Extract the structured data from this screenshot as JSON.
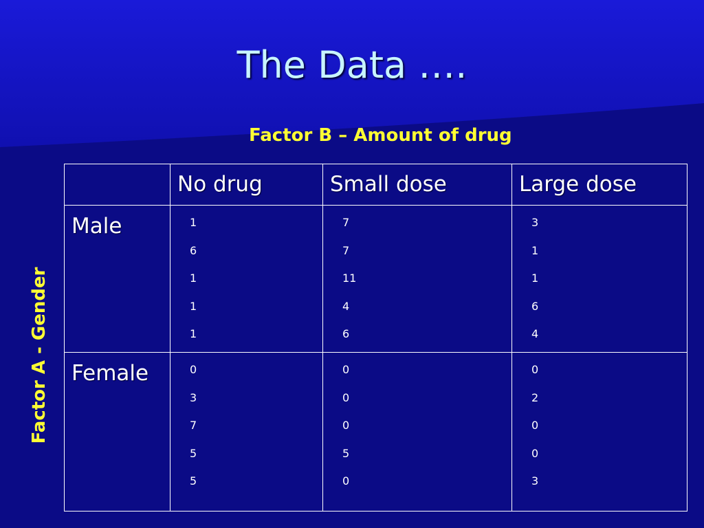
{
  "slide": {
    "title": "The Data ….",
    "factor_b_label": "Factor B – Amount of drug",
    "factor_a_label": "Factor A - Gender"
  },
  "table": {
    "columns": [
      "",
      "No drug",
      "Small dose",
      "Large dose"
    ],
    "rows": [
      {
        "label": "Male",
        "cells": [
          [
            "1",
            "6",
            "1",
            "1",
            "1"
          ],
          [
            "7",
            "7",
            "11",
            "4",
            "6"
          ],
          [
            "3",
            "1",
            "1",
            "6",
            "4"
          ]
        ]
      },
      {
        "label": "Female",
        "cells": [
          [
            "0",
            "3",
            "7",
            "5",
            "5"
          ],
          [
            "0",
            "0",
            "0",
            "5",
            "0"
          ],
          [
            "0",
            "2",
            "0",
            "0",
            "3"
          ]
        ]
      }
    ]
  },
  "colors": {
    "background": "#0b0b86",
    "title": "#c8f4ff",
    "factor_labels": "#ffff33",
    "table_text": "#ffffff"
  }
}
